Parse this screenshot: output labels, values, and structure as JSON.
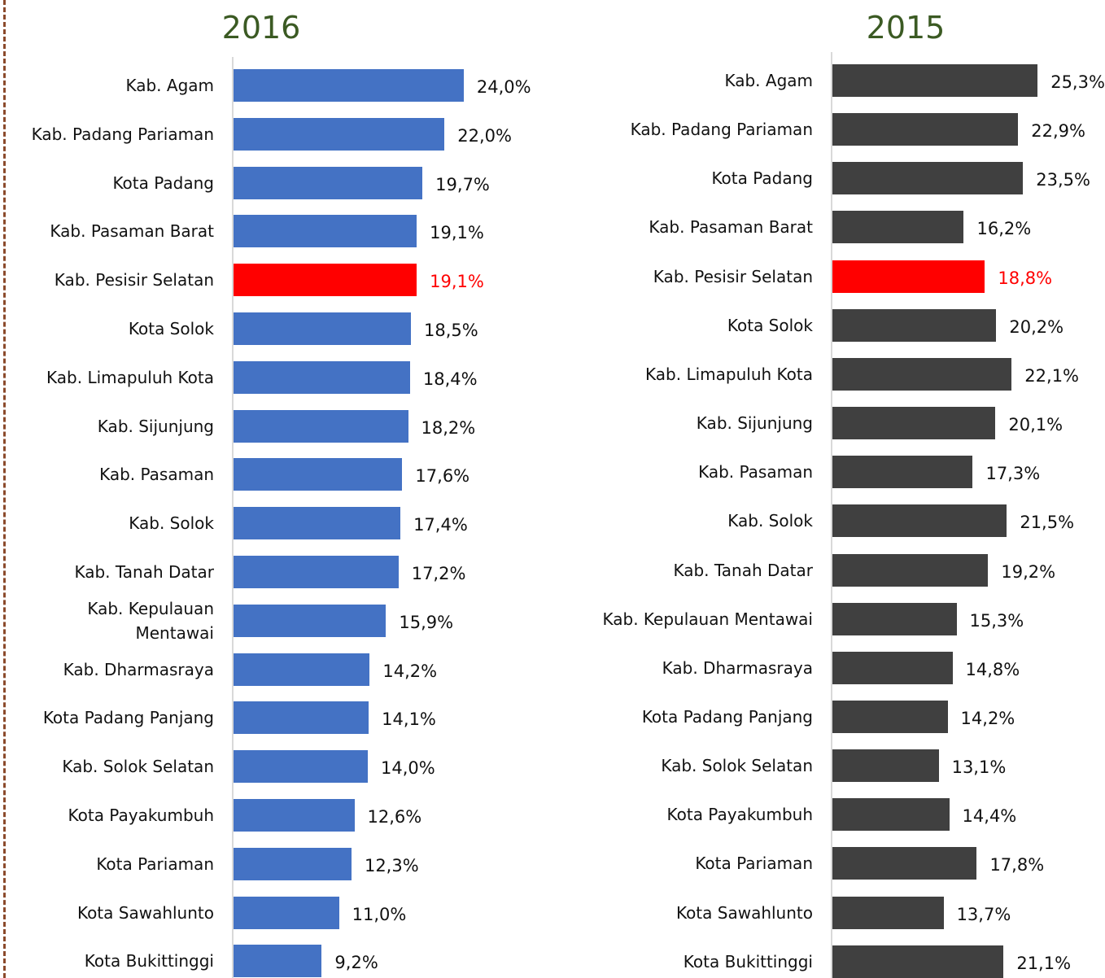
{
  "chart_data": [
    {
      "type": "bar",
      "orientation": "horizontal",
      "title": "2016",
      "categories": [
        "Kab. Agam",
        "Kab. Padang Pariaman",
        "Kota Padang",
        "Kab. Pasaman Barat",
        "Kab. Pesisir Selatan",
        "Kota Solok",
        "Kab. Limapuluh Kota",
        "Kab. Sijunjung",
        "Kab. Pasaman",
        "Kab. Solok",
        "Kab. Tanah Datar",
        "Kab. Kepulauan Mentawai",
        "Kab. Dharmasraya",
        "Kota Padang Panjang",
        "Kab. Solok Selatan",
        "Kota Payakumbuh",
        "Kota Pariaman",
        "Kota Sawahlunto",
        "Kota Bukittinggi"
      ],
      "values": [
        24.0,
        22.0,
        19.7,
        19.1,
        19.1,
        18.5,
        18.4,
        18.2,
        17.6,
        17.4,
        17.2,
        15.9,
        14.2,
        14.1,
        14.0,
        12.6,
        12.3,
        11.0,
        9.2
      ],
      "value_labels": [
        "24,0%",
        "22,0%",
        "19,7%",
        "19,1%",
        "19,1%",
        "18,5%",
        "18,4%",
        "18,2%",
        "17,6%",
        "17,4%",
        "17,2%",
        "15,9%",
        "14,2%",
        "14,1%",
        "14,0%",
        "12,6%",
        "12,3%",
        "11,0%",
        "9,2%"
      ],
      "colors": [
        "#4472c4",
        "#4472c4",
        "#4472c4",
        "#4472c4",
        "#ff0000",
        "#4472c4",
        "#4472c4",
        "#4472c4",
        "#4472c4",
        "#4472c4",
        "#4472c4",
        "#4472c4",
        "#4472c4",
        "#4472c4",
        "#4472c4",
        "#4472c4",
        "#4472c4",
        "#4472c4",
        "#4472c4"
      ],
      "xlim": [
        0,
        28
      ]
    },
    {
      "type": "bar",
      "orientation": "horizontal",
      "title": "2015",
      "categories": [
        "Kab. Agam",
        "Kab. Padang Pariaman",
        "Kota Padang",
        "Kab. Pasaman Barat",
        "Kab. Pesisir Selatan",
        "Kota Solok",
        "Kab. Limapuluh Kota",
        "Kab. Sijunjung",
        "Kab. Pasaman",
        "Kab. Solok",
        "Kab. Tanah Datar",
        "Kab. Kepulauan Mentawai",
        "Kab. Dharmasraya",
        "Kota Padang Panjang",
        "Kab. Solok Selatan",
        "Kota Payakumbuh",
        "Kota Pariaman",
        "Kota Sawahlunto",
        "Kota Bukittinggi"
      ],
      "values": [
        25.3,
        22.9,
        23.5,
        16.2,
        18.8,
        20.2,
        22.1,
        20.1,
        17.3,
        21.5,
        19.2,
        15.3,
        14.8,
        14.2,
        13.1,
        14.4,
        17.8,
        13.7,
        21.1
      ],
      "value_labels": [
        "25,3%",
        "22,9%",
        "23,5%",
        "16,2%",
        "18,8%",
        "20,2%",
        "22,1%",
        "20,1%",
        "17,3%",
        "21,5%",
        "19,2%",
        "15,3%",
        "14,8%",
        "14,2%",
        "13,1%",
        "14,4%",
        "17,8%",
        "13,7%",
        "21,1%"
      ],
      "colors": [
        "#404040",
        "#404040",
        "#404040",
        "#404040",
        "#ff0000",
        "#404040",
        "#404040",
        "#404040",
        "#404040",
        "#404040",
        "#404040",
        "#404040",
        "#404040",
        "#404040",
        "#404040",
        "#404040",
        "#404040",
        "#404040",
        "#404040"
      ],
      "xlim": [
        0,
        32
      ]
    }
  ]
}
